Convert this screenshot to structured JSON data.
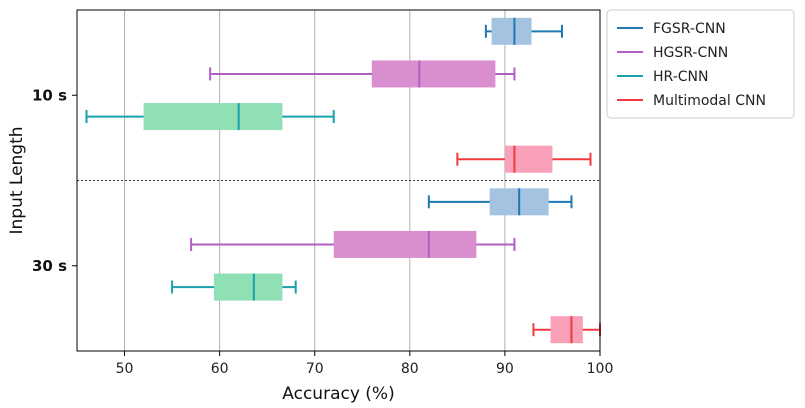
{
  "chart_data": {
    "type": "boxplot",
    "orientation": "horizontal",
    "xlabel": "Accuracy (%)",
    "ylabel": "Input Length",
    "xlim": [
      45,
      100
    ],
    "xticks": [
      50,
      60,
      70,
      80,
      90,
      100
    ],
    "grid": "vertical",
    "legend_position": "right",
    "categories": [
      "10 s",
      "30 s"
    ],
    "series": [
      {
        "name": "FGSR-CNN",
        "line_color": "#1f77b4",
        "fill_color": "#a4c3e1",
        "boxes": [
          {
            "category": "10 s",
            "min": 88,
            "q1": 88.6,
            "median": 91,
            "q3": 92.8,
            "max": 96
          },
          {
            "category": "30 s",
            "min": 82,
            "q1": 88.4,
            "median": 91.5,
            "q3": 94.6,
            "max": 97
          }
        ]
      },
      {
        "name": "HGSR-CNN",
        "line_color": "#b05fc4",
        "fill_color": "#d98fcf",
        "boxes": [
          {
            "category": "10 s",
            "min": 59,
            "q1": 76,
            "median": 81,
            "q3": 89,
            "max": 91
          },
          {
            "category": "30 s",
            "min": 57,
            "q1": 72,
            "median": 82,
            "q3": 87,
            "max": 91
          }
        ]
      },
      {
        "name": "HR-CNN",
        "line_color": "#17a2ad",
        "fill_color": "#8fe0b4",
        "boxes": [
          {
            "category": "10 s",
            "min": 46,
            "q1": 52,
            "median": 62,
            "q3": 66.6,
            "max": 72
          },
          {
            "category": "30 s",
            "min": 55,
            "q1": 59.4,
            "median": 63.6,
            "q3": 66.6,
            "max": 68
          }
        ]
      },
      {
        "name": "Multimodal CNN",
        "line_color": "#f03a3f",
        "fill_color": "#f8a1b8",
        "boxes": [
          {
            "category": "10 s",
            "min": 85,
            "q1": 90,
            "median": 91,
            "q3": 95,
            "max": 99
          },
          {
            "category": "30 s",
            "min": 93,
            "q1": 94.8,
            "median": 97,
            "q3": 98.2,
            "max": 100
          }
        ]
      }
    ]
  }
}
